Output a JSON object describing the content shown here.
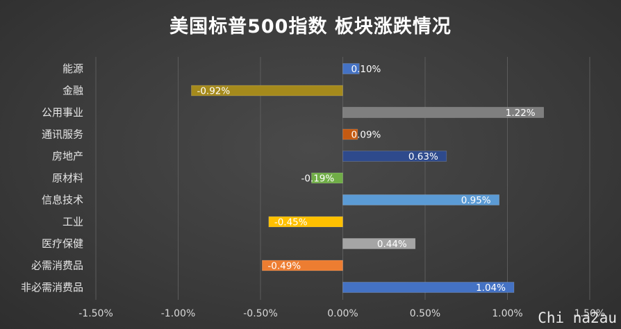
{
  "chart_data": {
    "type": "bar",
    "orientation": "horizontal",
    "title": "美国标普500指数 板块涨跌情况",
    "categories": [
      "能源",
      "金融",
      "公用事业",
      "通讯服务",
      "房地产",
      "原材料",
      "信息技术",
      "工业",
      "医疗保健",
      "必需消费品",
      "非必需消费品"
    ],
    "values": [
      0.1,
      -0.92,
      1.22,
      0.09,
      0.63,
      -0.19,
      0.95,
      -0.45,
      0.44,
      -0.49,
      1.04
    ],
    "data_labels": [
      "0.10%",
      "-0.92%",
      "1.22%",
      "0.09%",
      "0.63%",
      "-0.19%",
      "0.95%",
      "-0.45%",
      "0.44%",
      "-0.49%",
      "1.04%"
    ],
    "colors": [
      "#4472c4",
      "#a58a1c",
      "#7f7f7f",
      "#c55a11",
      "#2e4a8c",
      "#70ad47",
      "#5b9bd5",
      "#ffc000",
      "#a5a5a5",
      "#ed7d31",
      "#4472c4"
    ],
    "xlim": [
      -1.5,
      1.5
    ],
    "xticks": [
      -1.5,
      -1.0,
      -0.5,
      0.0,
      0.5,
      1.0,
      1.5
    ],
    "xtick_labels": [
      "-1.50%",
      "-1.00%",
      "-0.50%",
      "0.00%",
      "0.50%",
      "1.00%",
      "1.50%"
    ],
    "grid": "vertical",
    "xlabel": "",
    "ylabel": ""
  },
  "watermark": "Chi na2au"
}
